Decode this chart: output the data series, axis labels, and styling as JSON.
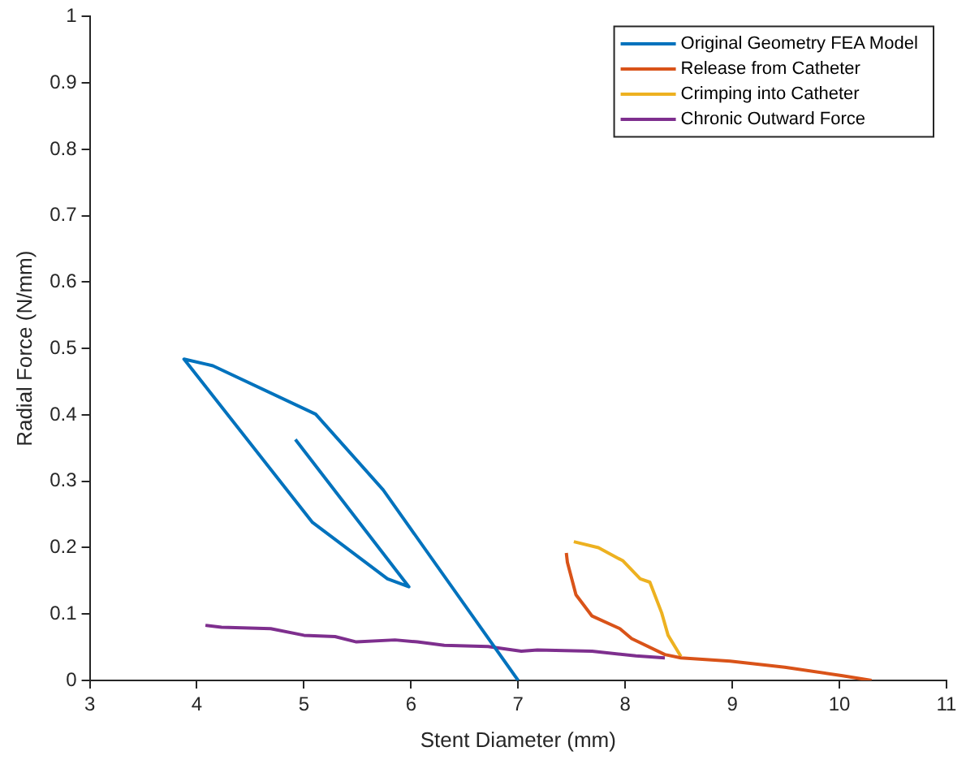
{
  "chart_data": {
    "type": "line",
    "xlabel": "Stent Diameter (mm)",
    "ylabel": "Radial Force (N/mm)",
    "xlim": [
      3,
      11
    ],
    "ylim": [
      0,
      1
    ],
    "xticks": [
      3,
      4,
      5,
      6,
      7,
      8,
      9,
      10,
      11
    ],
    "yticks": [
      0,
      0.1,
      0.2,
      0.3,
      0.4,
      0.5,
      0.6,
      0.7,
      0.8,
      0.9,
      1
    ],
    "grid": false,
    "legend": "top right",
    "marker": "none",
    "line_style": "solid",
    "series": [
      {
        "name": "Original Geometry FEA Model",
        "color": "#0072bd",
        "x": [
          4.92,
          5.98,
          5.78,
          5.08,
          3.88,
          4.15,
          5.11,
          5.74,
          7.0
        ],
        "values": [
          0.363,
          0.141,
          0.153,
          0.238,
          0.484,
          0.474,
          0.401,
          0.287,
          0.0
        ]
      },
      {
        "name": "Release from Catheter",
        "color": "#d95319",
        "x": [
          7.45,
          7.46,
          7.54,
          7.69,
          7.95,
          8.06,
          8.37,
          8.52,
          8.98,
          9.49,
          10.03,
          10.3
        ],
        "values": [
          0.192,
          0.178,
          0.129,
          0.097,
          0.078,
          0.063,
          0.039,
          0.034,
          0.029,
          0.02,
          0.007,
          0.0
        ]
      },
      {
        "name": "Crimping into Catheter",
        "color": "#edb120",
        "x": [
          7.52,
          7.75,
          7.98,
          8.14,
          8.23,
          8.34,
          8.4,
          8.52
        ],
        "values": [
          0.209,
          0.2,
          0.18,
          0.153,
          0.148,
          0.102,
          0.068,
          0.036
        ]
      },
      {
        "name": "Chronic Outward Force",
        "color": "#7e2f8e",
        "x": [
          4.08,
          4.23,
          4.69,
          5.0,
          5.29,
          5.49,
          5.85,
          6.06,
          6.31,
          6.72,
          7.03,
          7.18,
          7.69,
          8.1,
          8.37
        ],
        "values": [
          0.083,
          0.08,
          0.078,
          0.068,
          0.066,
          0.058,
          0.061,
          0.058,
          0.053,
          0.051,
          0.044,
          0.046,
          0.044,
          0.037,
          0.034
        ]
      }
    ]
  }
}
